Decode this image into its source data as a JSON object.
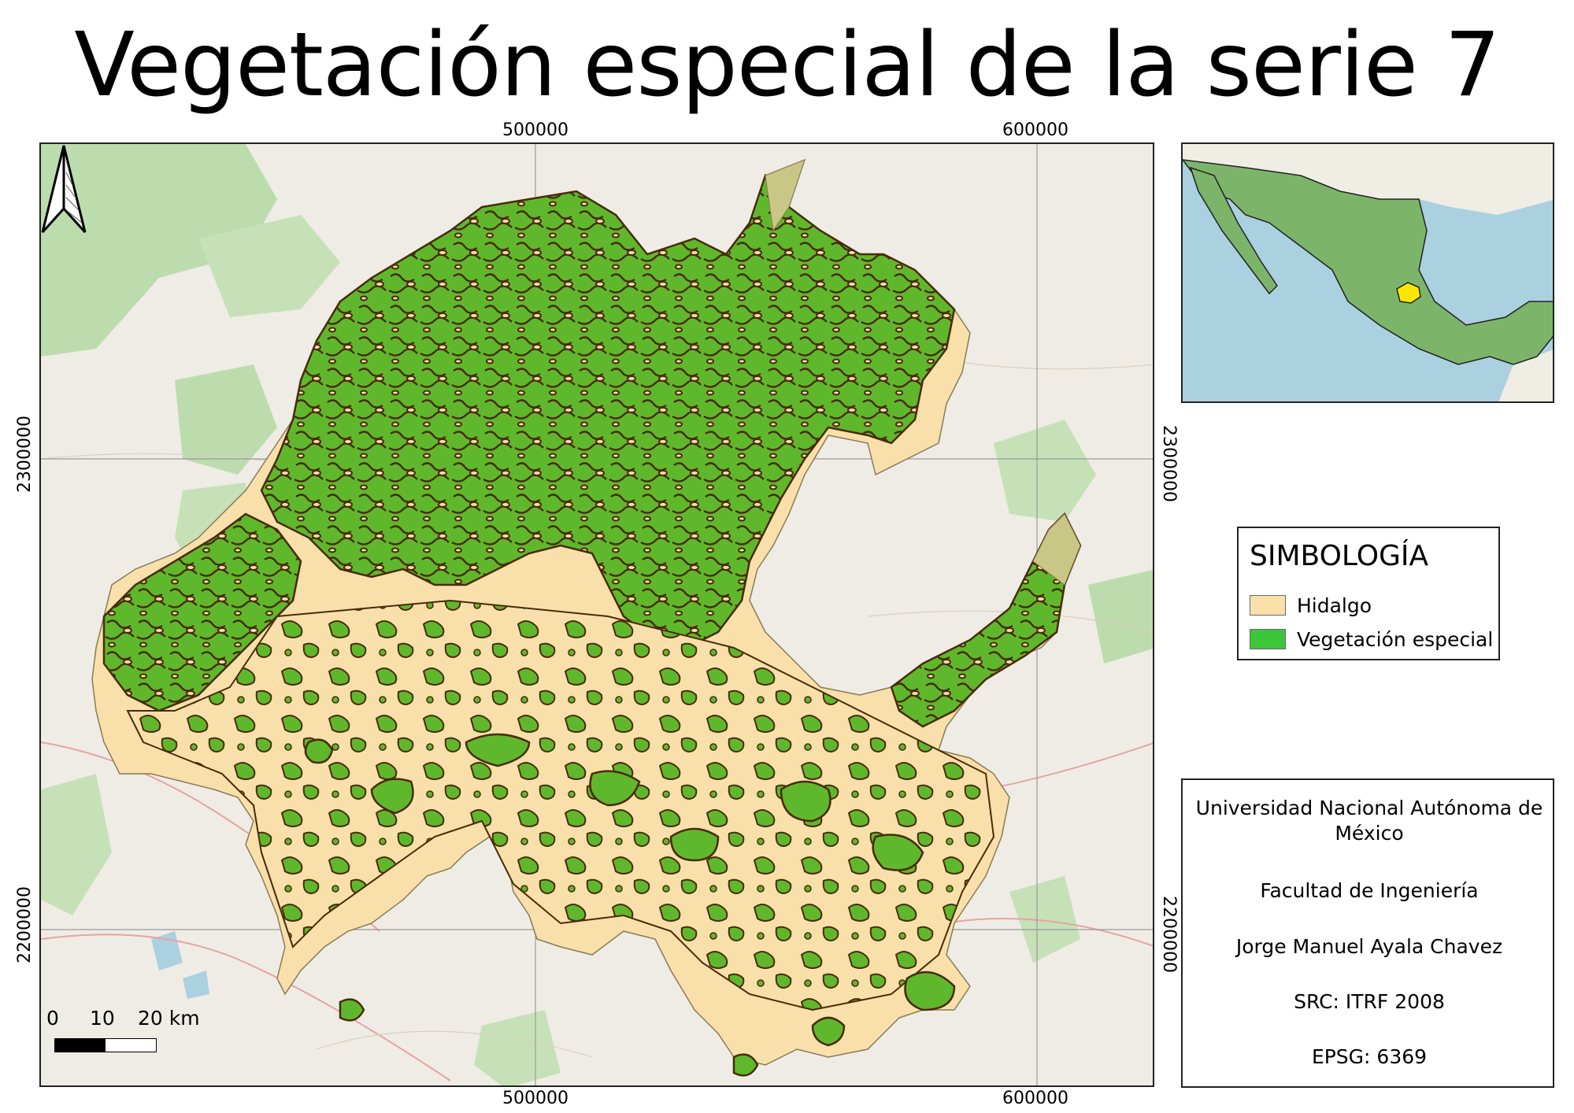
{
  "title": "Vegetación especial de la serie 7",
  "coordinates": {
    "top": [
      "500000",
      "600000"
    ],
    "bottom": [
      "500000",
      "600000"
    ],
    "left": [
      "2300000",
      "2200000"
    ],
    "right": [
      "2300000",
      "2200000"
    ]
  },
  "legend": {
    "title": "SIMBOLOGÍA",
    "items": [
      {
        "label": "Hidalgo",
        "color": "#f9e0aa"
      },
      {
        "label": "Vegetación especial",
        "color": "#3ec63a"
      }
    ]
  },
  "scalebar": {
    "labels": [
      "0",
      "10",
      "20 km"
    ]
  },
  "credits": {
    "institution": "Universidad Nacional Autónoma de México",
    "faculty": "Facultad de Ingeniería",
    "author": "Jorge Manuel Ayala Chavez",
    "src": "SRC: ITRF 2008",
    "epsg": "EPSG: 6369"
  },
  "colors": {
    "basemap": "#efece6",
    "basemap_green": "#bcdcad",
    "state_fill": "#f9e0aa",
    "vegetation_fill": "#5fb82c",
    "vegetation_outline": "#4a2a0a",
    "water": "#abd0e0",
    "mexico_fill": "#7cb56a",
    "highlight": "#ffe600"
  },
  "icons": {
    "north_arrow": "north-arrow-icon"
  }
}
